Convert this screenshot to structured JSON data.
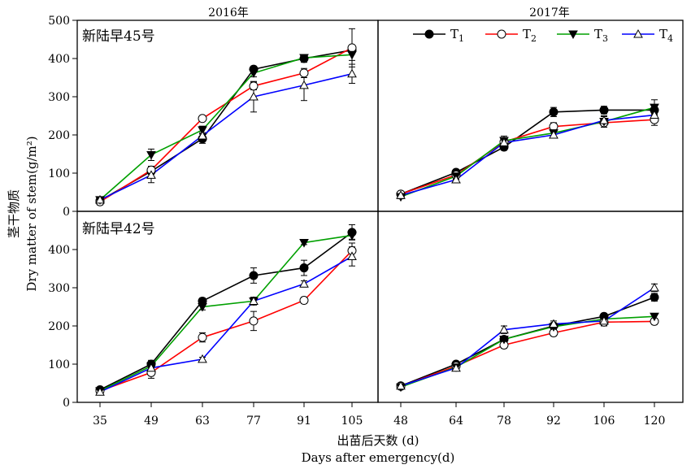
{
  "chart_data": {
    "type": "line",
    "ylabel_cn": "茎干物质",
    "ylabel_en": "Dry matter of stem(g/m²)",
    "xlabel_cn": "出苗后天数 (d)",
    "xlabel_en": "Days after emergency(d)",
    "ylim": [
      0,
      500
    ],
    "yticks_upper": [
      "0",
      "100",
      "200",
      "300",
      "400",
      "500"
    ],
    "yticks_lower": [
      "0",
      "100",
      "200",
      "300",
      "400"
    ],
    "years": [
      "2016年",
      "2017年"
    ],
    "legend_placement": "top",
    "legend": [
      {
        "key": "T1",
        "text": "T",
        "sub": "1"
      },
      {
        "key": "T2",
        "text": "T",
        "sub": "2"
      },
      {
        "key": "T3",
        "text": "T",
        "sub": "3"
      },
      {
        "key": "T4",
        "text": "T",
        "sub": "4"
      }
    ],
    "styles": {
      "T1": {
        "color": "#000000",
        "marker": "filled-circle"
      },
      "T2": {
        "color": "#ff0000",
        "marker": "open-circle"
      },
      "T3": {
        "color": "#00a000",
        "marker": "filled-triangle-down"
      },
      "T4": {
        "color": "#0000ff",
        "marker": "open-triangle-up"
      }
    },
    "panels": [
      {
        "id": "p2016a",
        "label": "新陆早45号",
        "x": [
          "35",
          "49",
          "63",
          "77",
          "91",
          "105"
        ],
        "series": [
          {
            "key": "T1",
            "values": [
              28,
              105,
              190,
              372,
              400,
              422
            ],
            "err": [
              5,
              8,
              12,
              8,
              10,
              10
            ]
          },
          {
            "key": "T2",
            "values": [
              25,
              108,
              243,
              328,
              362,
              428
            ],
            "err": [
              8,
              10,
              6,
              10,
              12,
              50
            ]
          },
          {
            "key": "T3",
            "values": [
              30,
              148,
              213,
              362,
              402,
              410
            ],
            "err": [
              5,
              15,
              10,
              10,
              8,
              15
            ]
          },
          {
            "key": "T4",
            "values": [
              30,
              95,
              198,
              300,
              330,
              360
            ],
            "err": [
              5,
              20,
              8,
              40,
              40,
              25
            ]
          }
        ]
      },
      {
        "id": "p2017a",
        "label": "",
        "x": [
          "48",
          "64",
          "78",
          "92",
          "106",
          "120"
        ],
        "series": [
          {
            "key": "T1",
            "values": [
              45,
              102,
              168,
              260,
              265,
              265
            ],
            "err": [
              5,
              5,
              8,
              12,
              10,
              10
            ]
          },
          {
            "key": "T2",
            "values": [
              45,
              95,
              182,
              222,
              232,
              240
            ],
            "err": [
              5,
              8,
              8,
              10,
              8,
              15
            ]
          },
          {
            "key": "T3",
            "values": [
              38,
              92,
              185,
              205,
              235,
              272
            ],
            "err": [
              5,
              8,
              12,
              8,
              15,
              20
            ]
          },
          {
            "key": "T4",
            "values": [
              42,
              83,
              180,
              200,
              238,
              252
            ],
            "err": [
              5,
              8,
              10,
              8,
              10,
              12
            ]
          }
        ]
      },
      {
        "id": "p2016b",
        "label": "新陆早42号",
        "x": [
          "35",
          "49",
          "63",
          "77",
          "91",
          "105"
        ],
        "series": [
          {
            "key": "T1",
            "values": [
              33,
              100,
              265,
              332,
              352,
              445
            ],
            "err": [
              5,
              10,
              8,
              20,
              20,
              20
            ]
          },
          {
            "key": "T2",
            "values": [
              30,
              78,
              170,
              213,
              267,
              397
            ],
            "err": [
              5,
              15,
              12,
              25,
              8,
              20
            ]
          },
          {
            "key": "T3",
            "values": [
              30,
              95,
              250,
              265,
              418,
              437
            ],
            "err": [
              5,
              10,
              8,
              10,
              5,
              10
            ]
          },
          {
            "key": "T4",
            "values": [
              27,
              90,
              113,
              265,
              310,
              382
            ],
            "err": [
              5,
              10,
              5,
              10,
              8,
              25
            ]
          }
        ]
      },
      {
        "id": "p2017b",
        "label": "",
        "x": [
          "48",
          "64",
          "78",
          "92",
          "106",
          "120"
        ],
        "series": [
          {
            "key": "T1",
            "values": [
              43,
              100,
              165,
              200,
              225,
              275
            ],
            "err": [
              5,
              5,
              8,
              8,
              8,
              10
            ]
          },
          {
            "key": "T2",
            "values": [
              42,
              95,
              150,
              182,
              210,
              212
            ],
            "err": [
              5,
              8,
              8,
              8,
              10,
              8
            ]
          },
          {
            "key": "T3",
            "values": [
              40,
              92,
              165,
              198,
              218,
              225
            ],
            "err": [
              5,
              8,
              8,
              8,
              8,
              8
            ]
          },
          {
            "key": "T4",
            "values": [
              43,
              90,
              190,
              205,
              213,
              300
            ],
            "err": [
              5,
              8,
              10,
              8,
              10,
              10
            ]
          }
        ]
      }
    ]
  }
}
